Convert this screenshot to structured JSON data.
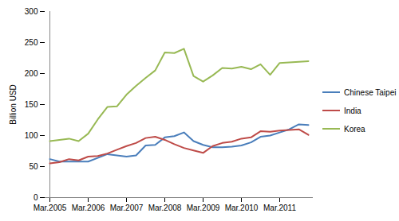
{
  "chart_data": {
    "type": "line",
    "y_label": "Billion USD",
    "categories": [
      "Mar.2005",
      null,
      null,
      null,
      "Mar.2006",
      null,
      null,
      null,
      "Mar.2007",
      null,
      null,
      null,
      "Mar.2008",
      null,
      null,
      null,
      "Mar.2009",
      null,
      null,
      null,
      "Mar.2010",
      null,
      null,
      null,
      "Mar.2011",
      null,
      null,
      null
    ],
    "series": [
      {
        "name": "Chinese Taipei",
        "color": "#4a7ebb",
        "values": [
          62,
          58,
          58,
          58,
          58,
          64,
          70,
          68,
          66,
          68,
          84,
          85,
          97,
          99,
          105,
          91,
          85,
          81,
          81,
          82,
          84,
          89,
          98,
          100,
          105,
          110,
          118,
          117
        ]
      },
      {
        "name": "India",
        "color": "#be4b48",
        "values": [
          55,
          57,
          62,
          60,
          66,
          67,
          71,
          77,
          83,
          88,
          96,
          98,
          93,
          86,
          80,
          76,
          72,
          83,
          88,
          90,
          95,
          97,
          107,
          106,
          108,
          109,
          110,
          101
        ]
      },
      {
        "name": "Korea",
        "color": "#98b954",
        "values": [
          91,
          93,
          95,
          91,
          103,
          126,
          146,
          147,
          166,
          180,
          193,
          205,
          234,
          233,
          240,
          196,
          187,
          197,
          209,
          208,
          211,
          207,
          215,
          198,
          217,
          218,
          219,
          220
        ]
      }
    ],
    "ylim": [
      0,
      300
    ],
    "yticks": [
      0,
      50,
      100,
      150,
      200,
      250,
      300
    ],
    "grid": false,
    "legend": "right"
  }
}
